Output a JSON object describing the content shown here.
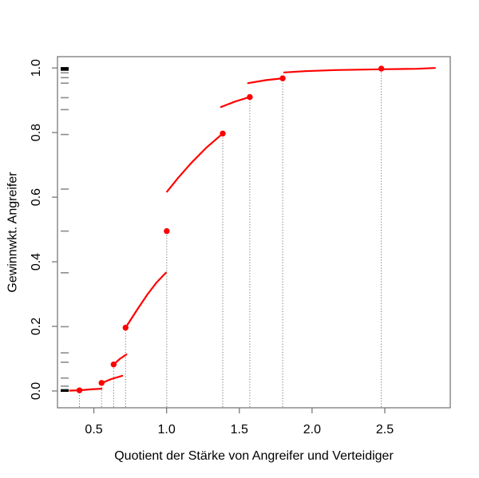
{
  "chart_data": {
    "type": "line",
    "title": "",
    "xlabel": "Quotient der Stärke von Angreifer und Verteidiger",
    "ylabel": "Gewinnwkt. Angreifer",
    "xlim": [
      0.25,
      2.95
    ],
    "ylim": [
      -0.052,
      1.035
    ],
    "x_ticks": [
      0.5,
      1.0,
      1.5,
      2.0,
      2.5
    ],
    "x_tick_labels": [
      "0.5",
      "1.0",
      "1.5",
      "2.0",
      "2.5"
    ],
    "y_ticks": [
      0.0,
      0.2,
      0.4,
      0.6,
      0.8,
      1.0
    ],
    "y_tick_labels": [
      "0.0",
      "0.2",
      "0.4",
      "0.6",
      "0.8",
      "1.0"
    ],
    "grid": false,
    "legend": null,
    "curve_color": "#ff0000",
    "frame_color": "#7a7a7a",
    "guide_color": "#5a5a5a",
    "rug_color_minor": "#8c8c8c",
    "rug_color_major": "#000000",
    "points": [
      [
        0.401,
        0.002
      ],
      [
        0.553,
        0.025
      ],
      [
        0.636,
        0.082
      ],
      [
        0.718,
        0.196
      ],
      [
        1.001,
        0.495
      ],
      [
        1.386,
        0.797
      ],
      [
        1.572,
        0.91
      ],
      [
        1.798,
        0.968
      ],
      [
        2.476,
        0.998
      ]
    ],
    "segments": [
      [
        [
          0.335,
          0.001
        ],
        [
          0.401,
          0.002
        ],
        [
          0.48,
          0.005
        ],
        [
          0.553,
          0.007
        ]
      ],
      [
        [
          0.557,
          0.025
        ],
        [
          0.62,
          0.037
        ],
        [
          0.695,
          0.047
        ]
      ],
      [
        [
          0.636,
          0.082
        ],
        [
          0.68,
          0.1
        ],
        [
          0.724,
          0.113
        ]
      ],
      [
        [
          0.718,
          0.196
        ],
        [
          0.8,
          0.253
        ],
        [
          0.87,
          0.3
        ],
        [
          0.93,
          0.335
        ],
        [
          0.995,
          0.366
        ]
      ],
      [
        [
          1.003,
          0.617
        ],
        [
          1.08,
          0.66
        ],
        [
          1.17,
          0.706
        ],
        [
          1.27,
          0.752
        ],
        [
          1.386,
          0.797
        ]
      ],
      [
        [
          1.374,
          0.879
        ],
        [
          1.47,
          0.896
        ],
        [
          1.572,
          0.91
        ]
      ],
      [
        [
          1.56,
          0.953
        ],
        [
          1.68,
          0.962
        ],
        [
          1.798,
          0.968
        ]
      ],
      [
        [
          1.808,
          0.986
        ],
        [
          1.95,
          0.99
        ],
        [
          2.16,
          0.9935
        ],
        [
          2.476,
          0.996
        ],
        [
          2.72,
          0.9975
        ],
        [
          2.845,
          1.0
        ]
      ]
    ],
    "rug_y_minor": [
      0.015,
      0.04,
      0.089,
      0.118,
      0.199,
      0.366,
      0.495,
      0.625,
      0.794,
      0.871,
      0.908,
      0.953,
      0.97,
      0.985
    ],
    "rug_y_major": [
      0.0,
      0.003,
      0.994,
      0.998,
      1.0
    ]
  }
}
